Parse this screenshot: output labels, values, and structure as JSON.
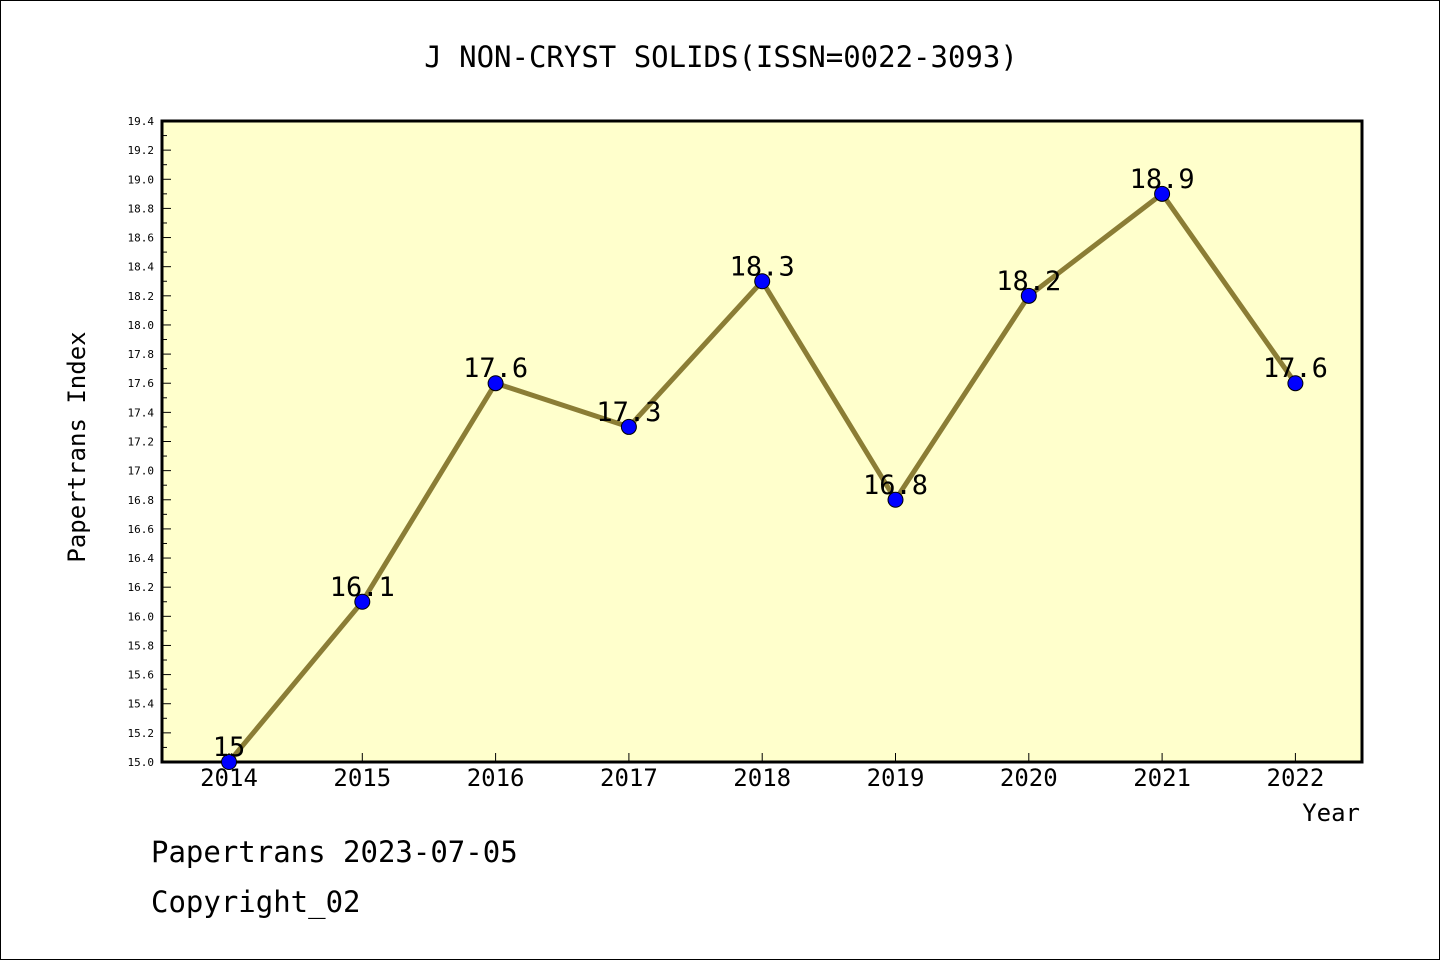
{
  "chart_data": {
    "type": "line",
    "title": "J NON-CRYST SOLIDS(ISSN=0022-3093)",
    "xlabel": "Year",
    "ylabel": "Papertrans Index",
    "categories": [
      "2014",
      "2015",
      "2016",
      "2017",
      "2018",
      "2019",
      "2020",
      "2021",
      "2022"
    ],
    "series": [
      {
        "values": [
          15,
          16.1,
          17.6,
          17.3,
          18.3,
          16.8,
          18.2,
          18.9,
          17.6
        ]
      }
    ],
    "data_labels": [
      "15",
      "16.1",
      "17.6",
      "17.3",
      "18.3",
      "16.8",
      "18.2",
      "18.9",
      "17.6"
    ],
    "ylim": [
      15.0,
      19.4
    ],
    "ytick_step": 0.2,
    "ytick_labels": [
      "15.0",
      "15.2",
      "15.4",
      "15.6",
      "15.8",
      "16.0",
      "16.2",
      "16.4",
      "16.6",
      "16.8",
      "17.0",
      "17.2",
      "17.4",
      "17.6",
      "17.8",
      "18.0",
      "18.2",
      "18.4",
      "18.6",
      "18.8",
      "19.0",
      "19.2",
      "19.4"
    ],
    "grid": false,
    "legend": "none",
    "colors": {
      "plot_bg": "#ffffcc",
      "line": "#8b7d35",
      "marker": "#0000ff",
      "border": "#000000"
    }
  },
  "footer": {
    "line1": "Papertrans 2023-07-05",
    "line2": "Copyright_02"
  }
}
